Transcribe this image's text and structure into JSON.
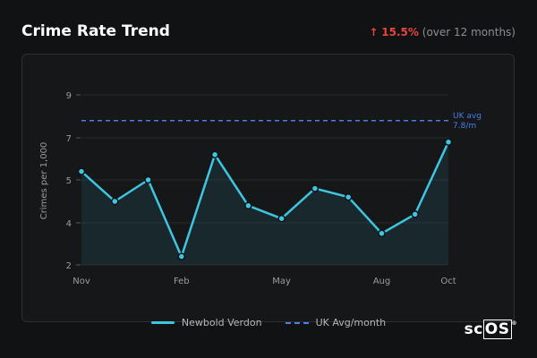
{
  "header": {
    "title": "Crime Rate Trend",
    "change_arrow": "↑",
    "change_pct": "15.5%",
    "change_suffix": "(over 12 months)"
  },
  "logo": {
    "prefix": "sc",
    "boxed": "OS",
    "mark": "®"
  },
  "chart_data": {
    "type": "line",
    "ylabel": "Crimes per 1,000",
    "yticks": [
      2,
      4,
      5,
      7,
      9
    ],
    "xtick_labels": [
      "Nov",
      "Feb",
      "May",
      "Aug",
      "Oct"
    ],
    "series": [
      {
        "name": "Newbold Verdon",
        "color": "#3fc5e0",
        "values": [
          5.4,
          4.5,
          5.0,
          2.4,
          6.2,
          4.4,
          4.1,
          4.8,
          4.6,
          3.5,
          4.2,
          6.8
        ]
      }
    ],
    "reference": {
      "name": "UK Avg/month",
      "value": 7.8,
      "label_line1": "UK avg",
      "label_line2": "7.8/m",
      "color": "#4a7ee8"
    },
    "legend": {
      "items": [
        "Newbold Verdon",
        "UK Avg/month"
      ],
      "placement": "bottom"
    },
    "grid": true
  }
}
